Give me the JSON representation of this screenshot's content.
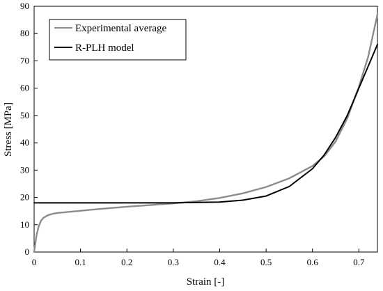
{
  "chart_data": {
    "type": "line",
    "xlabel": "Strain [-]",
    "ylabel": "Stress [MPa]",
    "xlim": [
      0,
      0.74
    ],
    "ylim": [
      0,
      90
    ],
    "x_ticks": [
      "0",
      "0.1",
      "0.2",
      "0.3",
      "0.4",
      "0.5",
      "0.6",
      "0.7"
    ],
    "y_ticks": [
      "0",
      "10",
      "20",
      "30",
      "40",
      "50",
      "60",
      "70",
      "80",
      "90"
    ],
    "x_tick_values": [
      0,
      0.1,
      0.2,
      0.3,
      0.4,
      0.5,
      0.6,
      0.7
    ],
    "y_tick_values": [
      0,
      10,
      20,
      30,
      40,
      50,
      60,
      70,
      80,
      90
    ],
    "grid": false,
    "legend_position": "top-left",
    "series": [
      {
        "name": "Experimental average",
        "color": "#8c8c8c",
        "x": [
          0,
          0.005,
          0.01,
          0.015,
          0.02,
          0.03,
          0.04,
          0.05,
          0.075,
          0.1,
          0.15,
          0.2,
          0.25,
          0.3,
          0.35,
          0.4,
          0.45,
          0.5,
          0.55,
          0.6,
          0.625,
          0.65,
          0.675,
          0.7,
          0.72,
          0.74
        ],
        "y": [
          0,
          6,
          9.5,
          11.5,
          12.5,
          13.5,
          14,
          14.3,
          14.7,
          15.1,
          15.9,
          16.6,
          17.2,
          17.8,
          18.6,
          19.8,
          21.5,
          23.8,
          27,
          31.5,
          35,
          40.5,
          49,
          60.5,
          71.5,
          87
        ]
      },
      {
        "name": "R-PLH model",
        "color": "#000000",
        "x": [
          0,
          0.05,
          0.1,
          0.2,
          0.3,
          0.4,
          0.45,
          0.5,
          0.55,
          0.6,
          0.625,
          0.65,
          0.675,
          0.7,
          0.72,
          0.74
        ],
        "y": [
          18,
          18,
          18,
          18,
          18,
          18.3,
          19,
          20.5,
          24,
          30.5,
          35.5,
          42,
          50,
          60,
          68,
          76
        ]
      }
    ]
  }
}
